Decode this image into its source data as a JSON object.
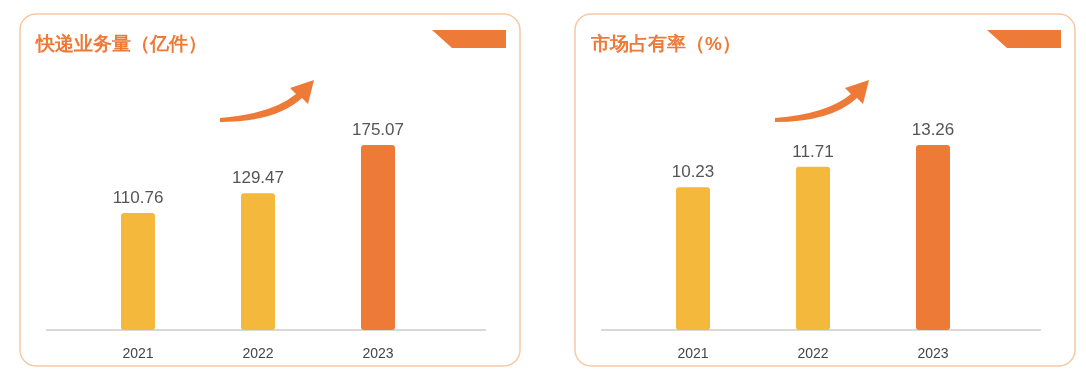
{
  "chart_data": [
    {
      "type": "bar",
      "title": "快递业务量（亿件）",
      "categories": [
        "2021",
        "2022",
        "2023"
      ],
      "values": [
        110.76,
        129.47,
        175.07
      ],
      "colors": [
        "#f4b93c",
        "#f4b93c",
        "#ee7a38"
      ],
      "data_labels": true
    },
    {
      "type": "bar",
      "title": "市场占有率（%）",
      "categories": [
        "2021",
        "2022",
        "2023"
      ],
      "values": [
        10.23,
        11.71,
        13.26
      ],
      "colors": [
        "#f4b93c",
        "#f4b93c",
        "#ee7a38"
      ],
      "data_labels": true
    }
  ]
}
